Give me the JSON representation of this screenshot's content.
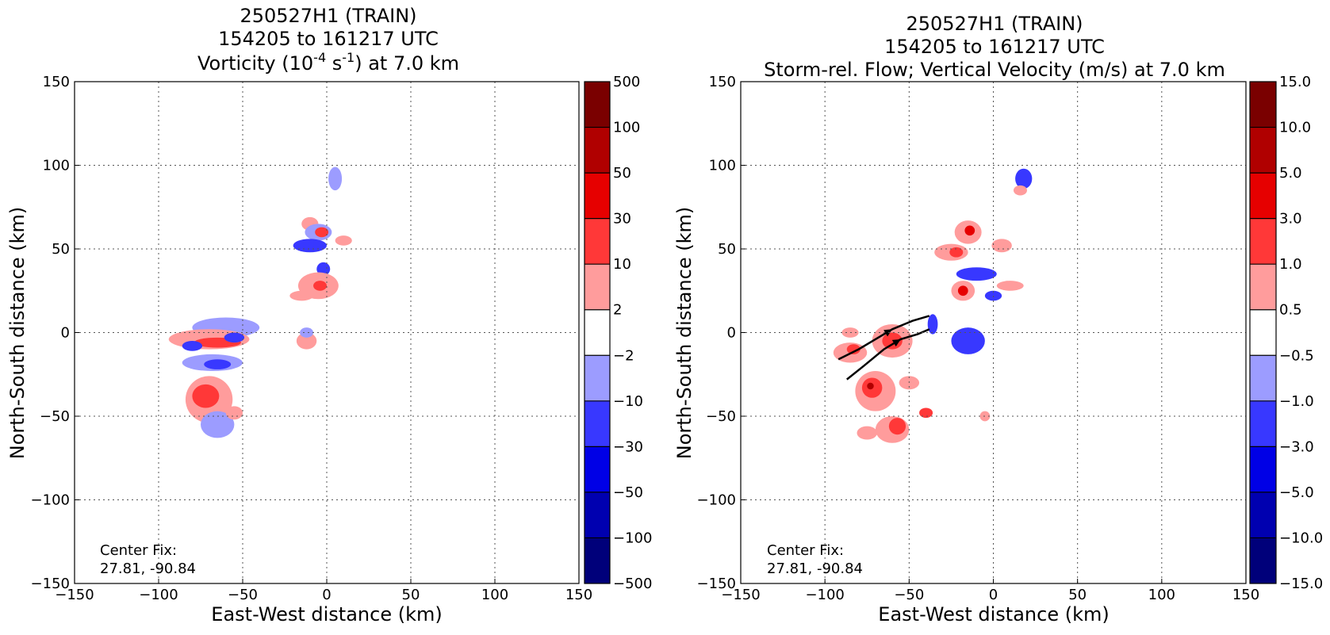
{
  "chart_data": [
    {
      "type": "heatmap",
      "title_lines": [
        "250527H1 (TRAIN)",
        "154205 to 161217 UTC"
      ],
      "title_line3": {
        "pre": "Vorticity (10",
        "sup1": "-4",
        "mid": " s",
        "sup2": "-1",
        "post": ") at 7.0 km"
      },
      "xlabel": "East-West distance (km)",
      "ylabel": "North-South distance (km)",
      "xlim": [
        -150,
        150
      ],
      "ylim": [
        -150,
        150
      ],
      "xticks": [
        -150,
        -100,
        -50,
        0,
        50,
        100,
        150
      ],
      "yticks": [
        -150,
        -100,
        -50,
        0,
        50,
        100,
        150
      ],
      "tick_labels": [
        "−150",
        "−100",
        "−50",
        "0",
        "50",
        "100",
        "150"
      ],
      "grid": true,
      "annotation": [
        "Center Fix:",
        "27.81, -90.84"
      ],
      "colorbar": {
        "labels": [
          "500",
          "100",
          "50",
          "30",
          "10",
          "2",
          "−2",
          "−10",
          "−30",
          "−50",
          "−100",
          "−500"
        ],
        "colors": [
          "#7a0000",
          "#b00000",
          "#e60000",
          "#ff3838",
          "#ff9c9c",
          "#ffffff",
          "#9c9cff",
          "#3838ff",
          "#0000e6",
          "#0000b0",
          "#00007a"
        ]
      },
      "features": [
        {
          "x": 5,
          "y": 92,
          "rx": 4,
          "ry": 7,
          "level": -2
        },
        {
          "x": -10,
          "y": 65,
          "rx": 5,
          "ry": 4,
          "level": 2
        },
        {
          "x": -5,
          "y": 60,
          "rx": 8,
          "ry": 5,
          "level": -2
        },
        {
          "x": -3,
          "y": 60,
          "rx": 4,
          "ry": 3,
          "level": 10
        },
        {
          "x": -10,
          "y": 52,
          "rx": 10,
          "ry": 4,
          "level": -10
        },
        {
          "x": 10,
          "y": 55,
          "rx": 5,
          "ry": 3,
          "level": 2
        },
        {
          "x": -2,
          "y": 38,
          "rx": 4,
          "ry": 4,
          "level": -10
        },
        {
          "x": -5,
          "y": 28,
          "rx": 12,
          "ry": 8,
          "level": 2
        },
        {
          "x": -4,
          "y": 28,
          "rx": 4,
          "ry": 3,
          "level": 10
        },
        {
          "x": -15,
          "y": 22,
          "rx": 7,
          "ry": 3,
          "level": 2
        },
        {
          "x": -60,
          "y": 3,
          "rx": 20,
          "ry": 6,
          "level": -2
        },
        {
          "x": -70,
          "y": -4,
          "rx": 24,
          "ry": 6,
          "level": 2
        },
        {
          "x": -65,
          "y": -6,
          "rx": 14,
          "ry": 3,
          "level": 10
        },
        {
          "x": -55,
          "y": -3,
          "rx": 6,
          "ry": 3,
          "level": -10
        },
        {
          "x": -80,
          "y": -8,
          "rx": 6,
          "ry": 3,
          "level": -10
        },
        {
          "x": -68,
          "y": -18,
          "rx": 18,
          "ry": 5,
          "level": -2
        },
        {
          "x": -65,
          "y": -19,
          "rx": 8,
          "ry": 3,
          "level": -10
        },
        {
          "x": -70,
          "y": -40,
          "rx": 14,
          "ry": 14,
          "level": 2
        },
        {
          "x": -72,
          "y": -38,
          "rx": 8,
          "ry": 7,
          "level": 10
        },
        {
          "x": -65,
          "y": -55,
          "rx": 10,
          "ry": 8,
          "level": -2
        },
        {
          "x": -55,
          "y": -48,
          "rx": 5,
          "ry": 4,
          "level": 2
        },
        {
          "x": -12,
          "y": -5,
          "rx": 6,
          "ry": 5,
          "level": 2
        },
        {
          "x": -12,
          "y": 0,
          "rx": 4,
          "ry": 3,
          "level": -2
        }
      ]
    },
    {
      "type": "heatmap",
      "title_lines": [
        "250527H1 (TRAIN)",
        "154205 to 161217 UTC",
        "Storm-rel. Flow; Vertical Velocity (m/s) at 7.0 km"
      ],
      "xlabel": "East-West distance (km)",
      "ylabel": "North-South distance (km)",
      "xlim": [
        -150,
        150
      ],
      "ylim": [
        -150,
        150
      ],
      "xticks": [
        -150,
        -100,
        -50,
        0,
        50,
        100,
        150
      ],
      "yticks": [
        -150,
        -100,
        -50,
        0,
        50,
        100,
        150
      ],
      "tick_labels": [
        "−150",
        "−100",
        "−50",
        "0",
        "50",
        "100",
        "150"
      ],
      "grid": true,
      "annotation": [
        "Center Fix:",
        "27.81, -90.84"
      ],
      "colorbar": {
        "labels": [
          "15.0",
          "10.0",
          "5.0",
          "3.0",
          "1.0",
          "0.5",
          "−0.5",
          "−1.0",
          "−3.0",
          "−5.0",
          "−10.0",
          "−15.0"
        ],
        "colors": [
          "#7a0000",
          "#b00000",
          "#e60000",
          "#ff3838",
          "#ff9c9c",
          "#ffffff",
          "#9c9cff",
          "#3838ff",
          "#0000e6",
          "#0000b0",
          "#00007a"
        ]
      },
      "features": [
        {
          "x": 18,
          "y": 92,
          "rx": 5,
          "ry": 6,
          "level": -1
        },
        {
          "x": 16,
          "y": 85,
          "rx": 4,
          "ry": 3,
          "level": 1
        },
        {
          "x": -15,
          "y": 60,
          "rx": 8,
          "ry": 7,
          "level": 1
        },
        {
          "x": -14,
          "y": 61,
          "rx": 3,
          "ry": 3,
          "level": 5
        },
        {
          "x": -25,
          "y": 48,
          "rx": 10,
          "ry": 5,
          "level": 1
        },
        {
          "x": -22,
          "y": 48,
          "rx": 4,
          "ry": 3,
          "level": 3
        },
        {
          "x": 5,
          "y": 52,
          "rx": 6,
          "ry": 4,
          "level": 1
        },
        {
          "x": -10,
          "y": 35,
          "rx": 12,
          "ry": 4,
          "level": -1
        },
        {
          "x": -18,
          "y": 25,
          "rx": 7,
          "ry": 6,
          "level": 1
        },
        {
          "x": -18,
          "y": 25,
          "rx": 3,
          "ry": 3,
          "level": 5
        },
        {
          "x": 10,
          "y": 28,
          "rx": 8,
          "ry": 3,
          "level": 1
        },
        {
          "x": 0,
          "y": 22,
          "rx": 5,
          "ry": 3,
          "level": -1
        },
        {
          "x": -15,
          "y": -5,
          "rx": 10,
          "ry": 8,
          "level": -1
        },
        {
          "x": -36,
          "y": 5,
          "rx": 3,
          "ry": 6,
          "level": -1
        },
        {
          "x": -60,
          "y": -5,
          "rx": 12,
          "ry": 10,
          "level": 1
        },
        {
          "x": -60,
          "y": -5,
          "rx": 6,
          "ry": 5,
          "level": 3
        },
        {
          "x": -85,
          "y": -12,
          "rx": 10,
          "ry": 6,
          "level": 1
        },
        {
          "x": -83,
          "y": -10,
          "rx": 4,
          "ry": 3,
          "level": 3
        },
        {
          "x": -70,
          "y": -35,
          "rx": 12,
          "ry": 12,
          "level": 1
        },
        {
          "x": -72,
          "y": -33,
          "rx": 6,
          "ry": 6,
          "level": 3
        },
        {
          "x": -73,
          "y": -32,
          "rx": 2,
          "ry": 2,
          "level": 10
        },
        {
          "x": -60,
          "y": -58,
          "rx": 10,
          "ry": 8,
          "level": 1
        },
        {
          "x": -57,
          "y": -56,
          "rx": 5,
          "ry": 5,
          "level": 3
        },
        {
          "x": -75,
          "y": -60,
          "rx": 6,
          "ry": 4,
          "level": 1
        },
        {
          "x": -50,
          "y": -30,
          "rx": 6,
          "ry": 4,
          "level": 1
        },
        {
          "x": -40,
          "y": -48,
          "rx": 4,
          "ry": 3,
          "level": 3
        },
        {
          "x": -5,
          "y": -50,
          "rx": 3,
          "ry": 3,
          "level": 1
        },
        {
          "x": -85,
          "y": 0,
          "rx": 5,
          "ry": 3,
          "level": 1
        }
      ],
      "streamlines": [
        {
          "x": [
            -92,
            -80,
            -70,
            -60,
            -48,
            -38
          ],
          "y": [
            -16,
            -10,
            -4,
            2,
            7,
            10
          ]
        },
        {
          "x": [
            -87,
            -77,
            -65,
            -55,
            -45,
            -38
          ],
          "y": [
            -28,
            -20,
            -10,
            -4,
            -1,
            2
          ]
        }
      ]
    }
  ]
}
